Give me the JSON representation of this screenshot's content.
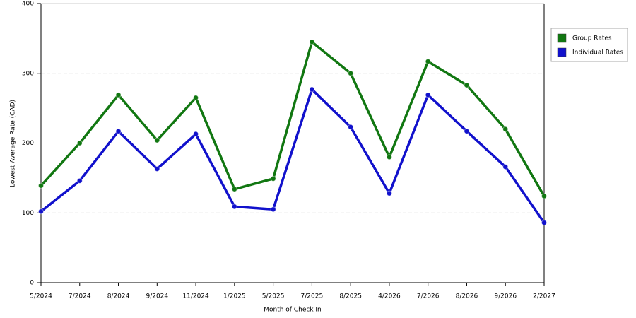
{
  "chart_data": {
    "type": "line",
    "x_label": "Month of Check In",
    "y_label": "Lowest Average Rate (CAD)",
    "categories": [
      "5/2024",
      "7/2024",
      "8/2024",
      "9/2024",
      "11/2024",
      "1/2025",
      "5/2025",
      "7/2025",
      "8/2025",
      "4/2026",
      "7/2026",
      "8/2026",
      "9/2026",
      "2/2027"
    ],
    "series": [
      {
        "name": "Group Rates",
        "color": "#117711",
        "values": [
          139,
          200,
          269,
          204,
          265,
          134,
          149,
          345,
          300,
          180,
          317,
          283,
          220,
          124
        ]
      },
      {
        "name": "Individual Rates",
        "color": "#1111cc",
        "values": [
          102,
          146,
          217,
          163,
          213,
          109,
          105,
          277,
          223,
          128,
          269,
          217,
          166,
          86
        ]
      }
    ],
    "ylim": [
      0,
      400
    ],
    "yticks": [
      0,
      100,
      200,
      300,
      400
    ],
    "grid": true,
    "legend": "right"
  }
}
